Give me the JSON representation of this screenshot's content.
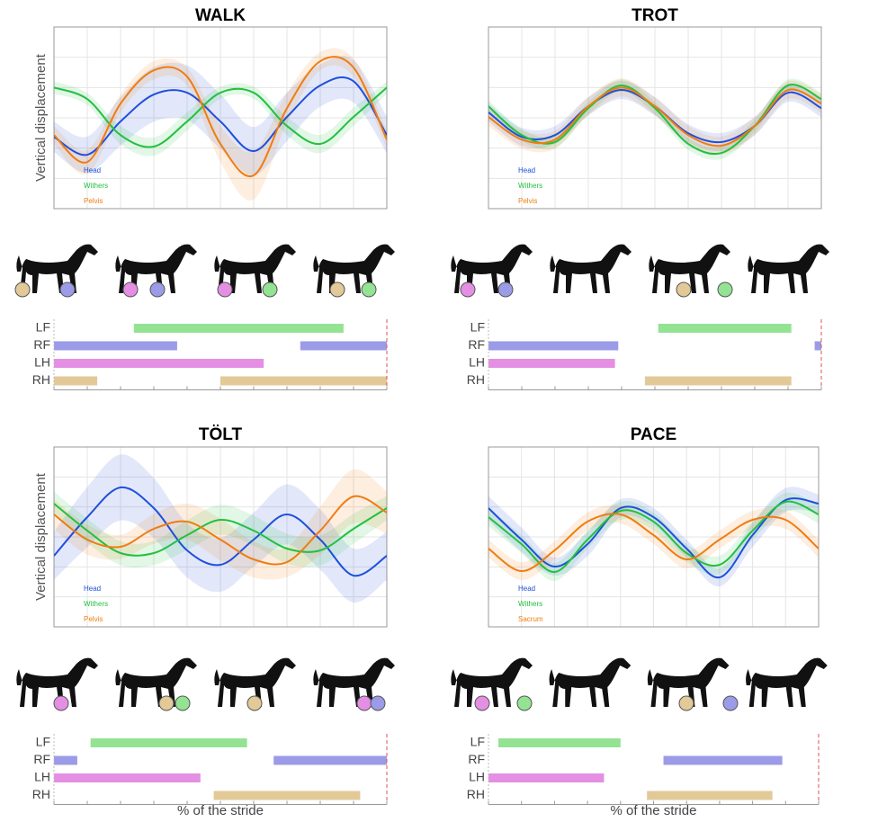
{
  "chart_data": [
    {
      "type": "line",
      "title": "WALK",
      "y_label": "Vertical displacement",
      "x": [
        0,
        10,
        20,
        30,
        40,
        50,
        60,
        70,
        80,
        90,
        100
      ],
      "xlim": [
        0,
        100
      ],
      "ylim": [
        0,
        6
      ],
      "xticks": [
        0,
        10,
        20,
        30,
        40,
        50,
        60,
        70,
        80,
        90,
        100
      ],
      "yticks": [
        0,
        1,
        2,
        3,
        4,
        5,
        6
      ],
      "grid": true,
      "series": [
        {
          "name": "Head",
          "color": "#1f4fdc",
          "values": [
            2.37,
            1.78,
            2.88,
            3.77,
            3.83,
            2.88,
            1.9,
            3.03,
            4.07,
            4.21,
            2.43
          ],
          "band": [
            0.5,
            0.6,
            0.8,
            0.9,
            0.9,
            0.9,
            0.8,
            0.8,
            0.7,
            0.7,
            0.6
          ]
        },
        {
          "name": "Withers",
          "color": "#22c040",
          "values": [
            4.0,
            3.62,
            2.43,
            2.05,
            2.88,
            3.83,
            3.83,
            2.73,
            2.14,
            3.03,
            4.0
          ],
          "band": [
            0.2,
            0.2,
            0.3,
            0.3,
            0.3,
            0.2,
            0.2,
            0.3,
            0.3,
            0.3,
            0.2
          ]
        },
        {
          "name": "Pelvis",
          "color": "#f07c10",
          "values": [
            2.43,
            1.54,
            3.47,
            4.57,
            4.36,
            2.14,
            1.1,
            3.32,
            4.87,
            4.66,
            2.28
          ],
          "band": [
            0.3,
            0.4,
            0.3,
            0.3,
            0.3,
            0.6,
            0.8,
            0.5,
            0.3,
            0.3,
            0.3
          ]
        }
      ],
      "gait": [
        {
          "label": "LF",
          "color": "#93e393",
          "intervals": [
            [
              24,
              87
            ]
          ]
        },
        {
          "label": "RF",
          "color": "#9b9be8",
          "intervals": [
            [
              0,
              37
            ],
            [
              74,
              100
            ]
          ]
        },
        {
          "label": "LH",
          "color": "#e48fe4",
          "intervals": [
            [
              0,
              63
            ]
          ]
        },
        {
          "label": "RH",
          "color": "#e2c997",
          "intervals": [
            [
              0,
              13
            ],
            [
              50,
              100
            ]
          ]
        }
      ]
    },
    {
      "type": "line",
      "title": "TROT",
      "x": [
        0,
        10,
        20,
        30,
        40,
        50,
        60,
        70,
        80,
        90,
        100
      ],
      "xlim": [
        0,
        100
      ],
      "ylim": [
        0,
        6
      ],
      "xticks": [
        0,
        10,
        20,
        30,
        40,
        50,
        60,
        70,
        80,
        90,
        100
      ],
      "yticks": [
        0,
        1,
        2,
        3,
        4,
        5,
        6
      ],
      "grid": true,
      "series": [
        {
          "name": "Head",
          "color": "#1f4fdc",
          "values": [
            3.18,
            2.37,
            2.43,
            3.38,
            3.92,
            3.38,
            2.49,
            2.2,
            2.73,
            3.83,
            3.32
          ],
          "band": [
            0.3,
            0.3,
            0.3,
            0.3,
            0.3,
            0.3,
            0.3,
            0.3,
            0.3,
            0.3,
            0.3
          ]
        },
        {
          "name": "Withers",
          "color": "#22c040",
          "values": [
            3.38,
            2.43,
            2.2,
            3.32,
            4.07,
            3.32,
            2.14,
            1.84,
            2.73,
            4.07,
            3.62
          ],
          "band": [
            0.2,
            0.2,
            0.2,
            0.2,
            0.2,
            0.2,
            0.2,
            0.2,
            0.2,
            0.2,
            0.2
          ]
        },
        {
          "name": "Pelvis",
          "color": "#f07c10",
          "values": [
            3.03,
            2.28,
            2.28,
            3.38,
            4.0,
            3.38,
            2.43,
            2.08,
            2.73,
            3.92,
            3.47
          ],
          "band": [
            0.3,
            0.3,
            0.3,
            0.3,
            0.3,
            0.3,
            0.3,
            0.3,
            0.3,
            0.3,
            0.3
          ]
        }
      ],
      "gait": [
        {
          "label": "LF",
          "color": "#93e393",
          "intervals": [
            [
              51,
              91
            ]
          ]
        },
        {
          "label": "RF",
          "color": "#9b9be8",
          "intervals": [
            [
              0,
              39
            ],
            [
              98,
              100
            ]
          ]
        },
        {
          "label": "LH",
          "color": "#e48fe4",
          "intervals": [
            [
              0,
              38
            ]
          ]
        },
        {
          "label": "RH",
          "color": "#e2c997",
          "intervals": [
            [
              47,
              91
            ]
          ]
        }
      ]
    },
    {
      "type": "line",
      "title": "TÖLT",
      "y_label": "Vertical displacement",
      "x_label": "% of the stride",
      "x": [
        0,
        10,
        20,
        30,
        40,
        50,
        60,
        70,
        80,
        90,
        100
      ],
      "xlim": [
        0,
        100
      ],
      "ylim": [
        0,
        6
      ],
      "xticks": [
        0,
        10,
        20,
        30,
        40,
        50,
        60,
        70,
        80,
        90,
        100
      ],
      "yticks": [
        0,
        1,
        2,
        3,
        4,
        5,
        6
      ],
      "grid": true,
      "series": [
        {
          "name": "Head",
          "color": "#1f4fdc",
          "values": [
            2.37,
            3.66,
            4.65,
            3.96,
            2.55,
            2.07,
            2.91,
            3.75,
            2.91,
            1.71,
            2.37
          ],
          "band": [
            0.8,
            1.0,
            1.1,
            1.0,
            0.9,
            0.9,
            0.9,
            1.0,
            1.0,
            0.9,
            0.8
          ]
        },
        {
          "name": "Withers",
          "color": "#22c040",
          "values": [
            4.11,
            3.21,
            2.46,
            2.46,
            3.06,
            3.57,
            3.21,
            2.61,
            2.55,
            3.27,
            3.96
          ],
          "band": [
            0.4,
            0.4,
            0.4,
            0.4,
            0.5,
            0.5,
            0.5,
            0.5,
            0.5,
            0.5,
            0.4
          ]
        },
        {
          "name": "Pelvis",
          "color": "#f07c10",
          "values": [
            3.75,
            2.91,
            2.67,
            3.27,
            3.51,
            2.91,
            2.25,
            2.16,
            3.21,
            4.35,
            3.81
          ],
          "band": [
            0.5,
            0.5,
            0.4,
            0.5,
            0.6,
            0.7,
            0.6,
            0.5,
            0.8,
            0.9,
            0.7
          ]
        }
      ],
      "gait": [
        {
          "label": "LF",
          "color": "#93e393",
          "intervals": [
            [
              11,
              58
            ]
          ]
        },
        {
          "label": "RF",
          "color": "#9b9be8",
          "intervals": [
            [
              0,
              7
            ],
            [
              66,
              100
            ]
          ]
        },
        {
          "label": "LH",
          "color": "#e48fe4",
          "intervals": [
            [
              0,
              44
            ]
          ]
        },
        {
          "label": "RH",
          "color": "#e2c997",
          "intervals": [
            [
              48,
              92
            ]
          ]
        }
      ]
    },
    {
      "type": "line",
      "title": "PACE",
      "x_label": "% of the stride",
      "x": [
        0,
        10,
        20,
        30,
        40,
        50,
        60,
        70,
        80,
        90,
        100
      ],
      "xlim": [
        0,
        100
      ],
      "ylim": [
        0,
        6
      ],
      "xticks": [
        0,
        10,
        20,
        30,
        40,
        50,
        60,
        70,
        80,
        90,
        100
      ],
      "yticks": [
        0,
        1,
        2,
        3,
        4,
        5,
        6
      ],
      "grid": true,
      "series": [
        {
          "name": "Head",
          "color": "#1f4fdc",
          "values": [
            3.96,
            2.91,
            2.01,
            2.76,
            3.96,
            3.66,
            2.61,
            1.65,
            3.06,
            4.23,
            4.11
          ],
          "band": [
            0.4,
            0.4,
            0.3,
            0.4,
            0.3,
            0.3,
            0.3,
            0.3,
            0.4,
            0.4,
            0.3
          ]
        },
        {
          "name": "Withers",
          "color": "#22c040",
          "values": [
            3.66,
            2.76,
            1.83,
            2.91,
            3.87,
            3.51,
            2.46,
            2.07,
            3.21,
            4.17,
            3.75
          ],
          "band": [
            0.3,
            0.3,
            0.3,
            0.3,
            0.3,
            0.3,
            0.3,
            0.3,
            0.3,
            0.3,
            0.3
          ]
        },
        {
          "name": "Sacrum",
          "color": "#f07c10",
          "values": [
            2.61,
            1.86,
            2.55,
            3.51,
            3.75,
            3.06,
            2.25,
            2.91,
            3.57,
            3.57,
            2.61
          ],
          "band": [
            0.3,
            0.3,
            0.3,
            0.3,
            0.3,
            0.3,
            0.3,
            0.3,
            0.3,
            0.3,
            0.3
          ]
        }
      ],
      "gait": [
        {
          "label": "LF",
          "color": "#93e393",
          "intervals": [
            [
              3,
              40
            ]
          ]
        },
        {
          "label": "RF",
          "color": "#9b9be8",
          "intervals": [
            [
              53,
              89
            ]
          ]
        },
        {
          "label": "LH",
          "color": "#e48fe4",
          "intervals": [
            [
              0,
              35
            ]
          ]
        },
        {
          "label": "RH",
          "color": "#e2c997",
          "intervals": [
            [
              48,
              86
            ]
          ]
        }
      ]
    }
  ]
}
